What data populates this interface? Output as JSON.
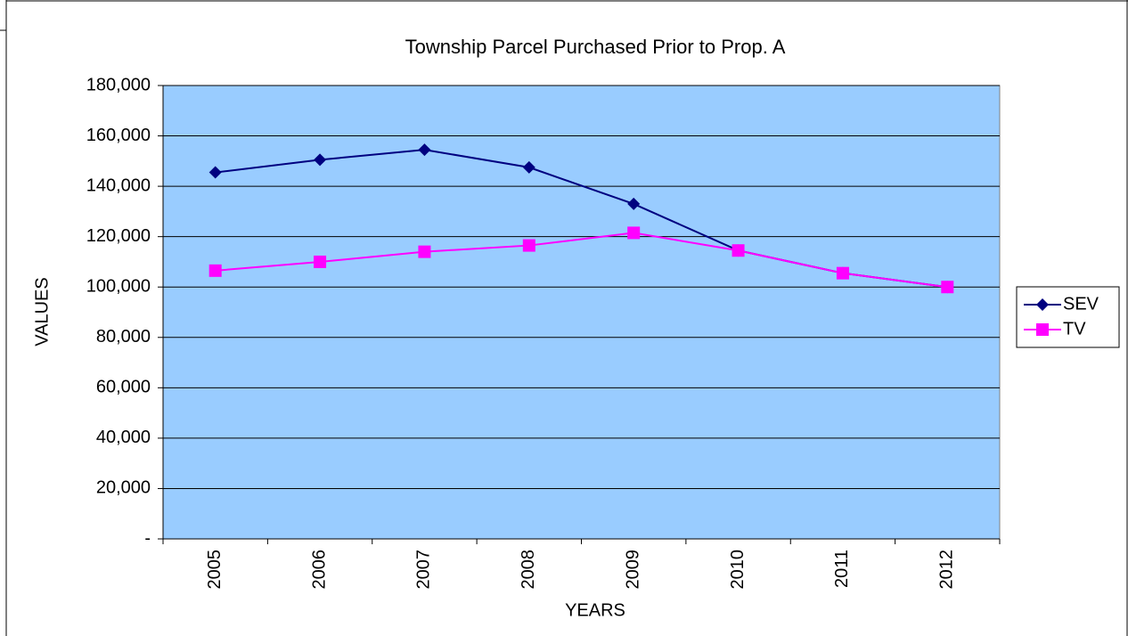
{
  "chart_data": {
    "type": "line",
    "title": "Township Parcel Purchased Prior to Prop. A",
    "x_label": "YEARS",
    "y_label": "VALUES",
    "categories": [
      "2005",
      "2006",
      "2007",
      "2008",
      "2009",
      "2010",
      "2011",
      "2012"
    ],
    "series": [
      {
        "name": "SEV",
        "color": "#000080",
        "marker": "diamond",
        "values": [
          145500,
          150500,
          154500,
          147500,
          133000,
          114500,
          105500,
          100000
        ]
      },
      {
        "name": "TV",
        "color": "#ff00ff",
        "marker": "square",
        "values": [
          106500,
          110000,
          114000,
          116500,
          121500,
          114500,
          105500,
          100000
        ]
      }
    ],
    "ylim": [
      0,
      180000
    ],
    "yticks": [
      {
        "value": 0,
        "label": "-"
      },
      {
        "value": 20000,
        "label": "20,000"
      },
      {
        "value": 40000,
        "label": "40,000"
      },
      {
        "value": 60000,
        "label": "60,000"
      },
      {
        "value": 80000,
        "label": "80,000"
      },
      {
        "value": 100000,
        "label": "100,000"
      },
      {
        "value": 120000,
        "label": "120,000"
      },
      {
        "value": 140000,
        "label": "140,000"
      },
      {
        "value": 160000,
        "label": "160,000"
      },
      {
        "value": 180000,
        "label": "180,000"
      }
    ],
    "grid": true,
    "plot_background": "#99ccff",
    "legend": "right"
  }
}
